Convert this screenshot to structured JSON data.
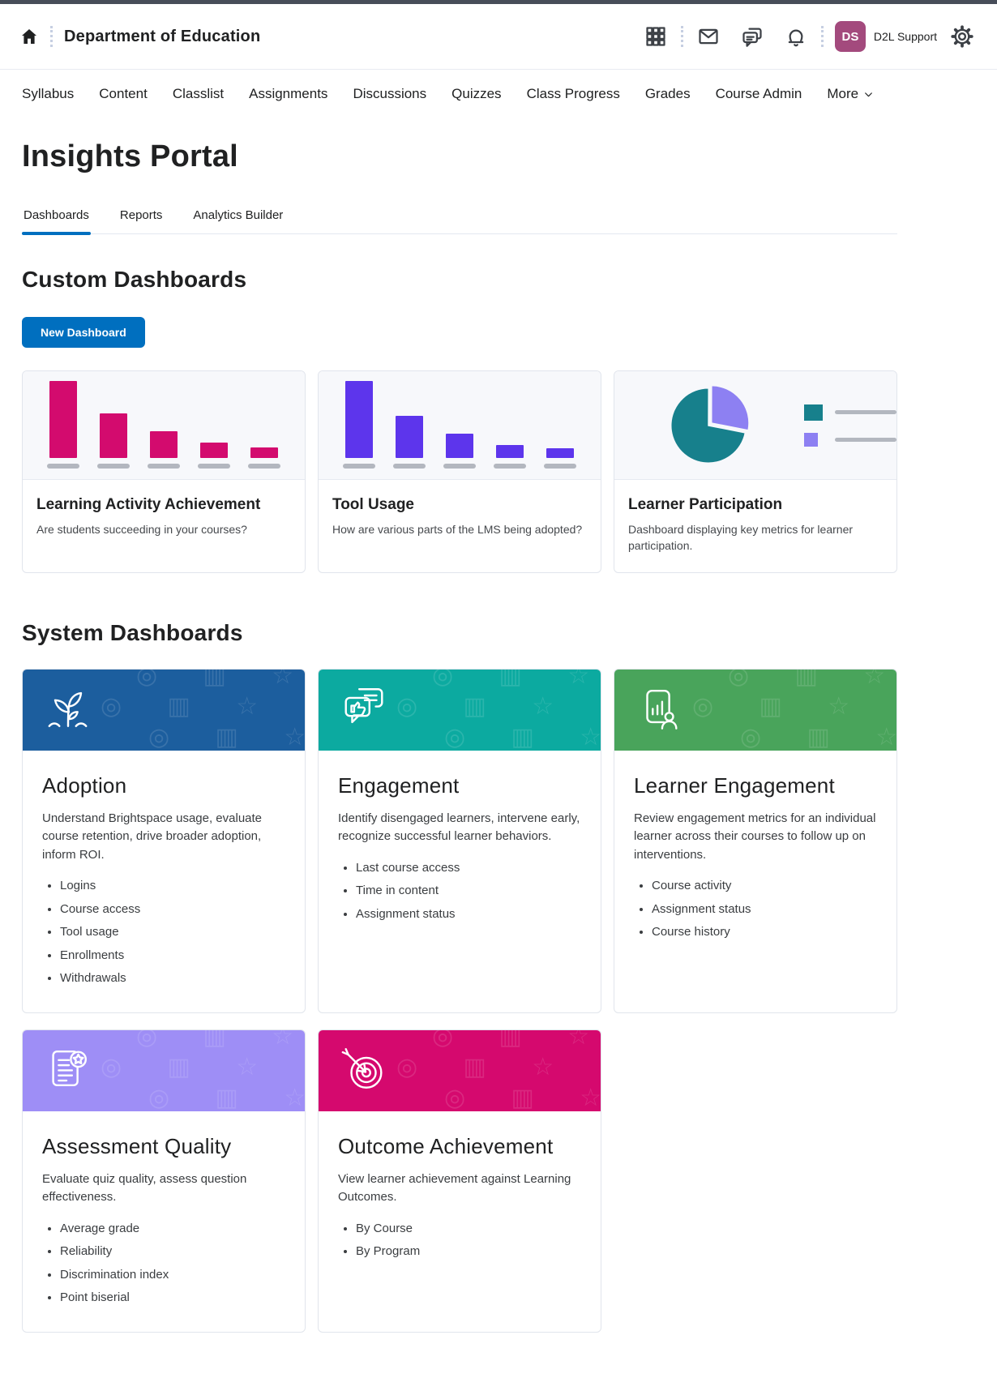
{
  "colors": {
    "accent_blue": "#006fbf",
    "top_strip": "#474d59",
    "avatar": "#a34a7d"
  },
  "header": {
    "course_title": "Department of Education",
    "icons": [
      "home-icon",
      "app-switcher-grid-icon",
      "email-icon",
      "chat-icon",
      "notification-bell-icon",
      "settings-gear-icon"
    ],
    "user": {
      "initials": "DS",
      "name": "D2L Support"
    }
  },
  "nav": {
    "items": [
      "Syllabus",
      "Content",
      "Classlist",
      "Assignments",
      "Discussions",
      "Quizzes",
      "Class Progress",
      "Grades",
      "Course Admin"
    ],
    "more_label": "More"
  },
  "page": {
    "title": "Insights Portal"
  },
  "tabs": [
    {
      "label": "Dashboards",
      "active": true
    },
    {
      "label": "Reports",
      "active": false
    },
    {
      "label": "Analytics Builder",
      "active": false
    }
  ],
  "custom_dashboards": {
    "heading": "Custom Dashboards",
    "new_button_label": "New Dashboard",
    "cards": [
      {
        "title": "Learning Activity Achievement",
        "description": "Are students succeeding in your courses?",
        "chart": {
          "type": "bar",
          "color": "#d30b6e",
          "values": [
            95,
            55,
            33,
            19,
            13
          ]
        }
      },
      {
        "title": "Tool Usage",
        "description": "How are various parts of the LMS being adopted?",
        "chart": {
          "type": "bar",
          "color": "#5d35ec",
          "values": [
            95,
            52,
            30,
            16,
            12
          ]
        }
      },
      {
        "title": "Learner Participation",
        "description": "Dashboard displaying key metrics for learner participation.",
        "chart": {
          "type": "pie",
          "slices": [
            {
              "color": "#17808c",
              "value": 72,
              "explode": false
            },
            {
              "color": "#8d80f2",
              "value": 28,
              "explode": true
            }
          ]
        }
      }
    ]
  },
  "system_dashboards": {
    "heading": "System Dashboards",
    "cards": [
      {
        "title": "Adoption",
        "header_color": "#1c5e9e",
        "icon": "sprout",
        "description": "Understand Brightspace usage, evaluate course retention, drive broader adoption, inform ROI.",
        "bullets": [
          "Logins",
          "Course access",
          "Tool usage",
          "Enrollments",
          "Withdrawals"
        ]
      },
      {
        "title": "Engagement",
        "header_color": "#0caaa0",
        "icon": "chat-thumbs-up",
        "description": "Identify disengaged learners, intervene early, recognize successful learner behaviors.",
        "bullets": [
          "Last course access",
          "Time in content",
          "Assignment status"
        ]
      },
      {
        "title": "Learner Engagement",
        "header_color": "#49a45b",
        "icon": "report-person",
        "description": "Review engagement metrics for an individual learner across their courses to follow up on interventions.",
        "bullets": [
          "Course activity",
          "Assignment status",
          "Course history"
        ]
      },
      {
        "title": "Assessment Quality",
        "header_color": "#9e8ef6",
        "icon": "document-star",
        "description": "Evaluate quiz quality, assess question effectiveness.",
        "bullets": [
          "Average grade",
          "Reliability",
          "Discrimination index",
          "Point biserial"
        ]
      },
      {
        "title": "Outcome Achievement",
        "header_color": "#d5096e",
        "icon": "target-arrow",
        "description": "View learner achievement against Learning Outcomes.",
        "bullets": [
          "By Course",
          "By Program"
        ]
      }
    ]
  }
}
